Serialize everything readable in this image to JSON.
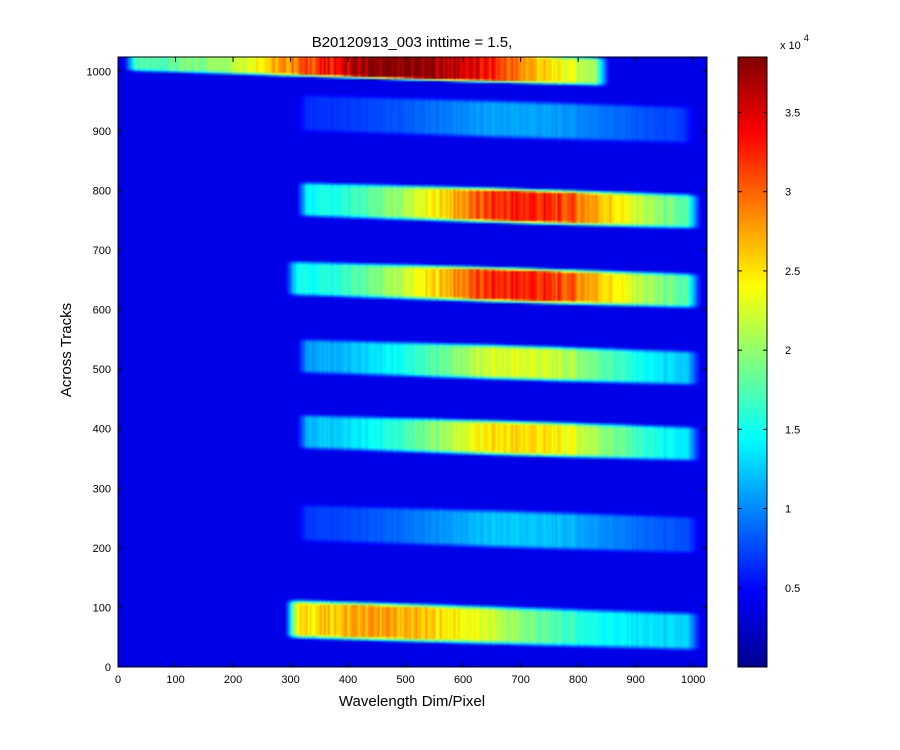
{
  "chart_data": {
    "type": "heatmap",
    "title": "B20120913_003 inttime = 1.5,",
    "xlabel": "Wavelength Dim/Pixel",
    "ylabel": "Across Tracks",
    "xlim": [
      0,
      1024
    ],
    "ylim": [
      0,
      1024
    ],
    "x_ticks": [
      "0",
      "100",
      "200",
      "300",
      "400",
      "500",
      "600",
      "700",
      "800",
      "900",
      "1000"
    ],
    "y_ticks": [
      "0",
      "100",
      "200",
      "300",
      "400",
      "500",
      "600",
      "700",
      "800",
      "900",
      "1000"
    ],
    "colormap": "jet",
    "background_value": 0,
    "colorbar": {
      "range": [
        0,
        38500
      ],
      "ticks": [
        "0.5",
        "1",
        "1.5",
        "2",
        "2.5",
        "3",
        "3.5"
      ],
      "multiplier_base": "x 10",
      "multiplier_exp": "4"
    },
    "bands": [
      {
        "y_center": 1005,
        "height": 45,
        "x_start": 30,
        "x_end": 830,
        "peak_x": 500,
        "peak_value": 38500,
        "secondary_peak_x": 795,
        "secondary_peak_value": 14000
      },
      {
        "y_center": 920,
        "height": 60,
        "x_start": 330,
        "x_end": 980,
        "peak_x": 700,
        "peak_value": 8000
      },
      {
        "y_center": 775,
        "height": 55,
        "x_start": 330,
        "x_end": 990,
        "peak_x": 710,
        "peak_value": 32000
      },
      {
        "y_center": 642,
        "height": 55,
        "x_start": 310,
        "x_end": 990,
        "peak_x": 700,
        "peak_value": 32000
      },
      {
        "y_center": 512,
        "height": 55,
        "x_start": 330,
        "x_end": 990,
        "peak_x": 700,
        "peak_value": 21000
      },
      {
        "y_center": 385,
        "height": 55,
        "x_start": 330,
        "x_end": 990,
        "peak_x": 700,
        "peak_value": 24000
      },
      {
        "y_center": 232,
        "height": 60,
        "x_start": 330,
        "x_end": 990,
        "peak_x": 700,
        "peak_value": 9500
      },
      {
        "y_center": 70,
        "height": 60,
        "x_start": 310,
        "x_end": 990,
        "peak_x": 450,
        "peak_value": 26000
      }
    ]
  }
}
